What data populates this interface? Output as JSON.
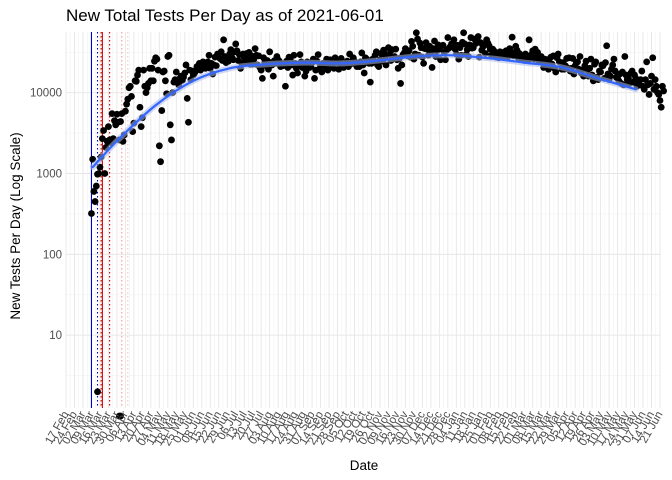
{
  "chart_data": {
    "type": "scatter",
    "title": "New Total Tests Per Day as of 2021-06-01",
    "xlabel": "Date",
    "ylabel": "New Tests Per Day (Log Scale)",
    "y_scale": "log10",
    "x_domain": [
      "2020-02-17",
      "2021-06-21"
    ],
    "y_ticks": [
      10,
      100,
      1000,
      10000
    ],
    "y_tick_labels": [
      "10",
      "100",
      "1000",
      "10000"
    ],
    "grid": true,
    "x_tick_labels": [
      "17 Feb",
      "24 Feb",
      "02 Mar",
      "09 Mar",
      "16 Mar",
      "23 Mar",
      "30 Mar",
      "06 Apr",
      "13 Apr",
      "20 Apr",
      "27 Apr",
      "04 May",
      "11 May",
      "18 May",
      "25 May",
      "01 Jun",
      "08 Jun",
      "15 Jun",
      "22 Jun",
      "29 Jun",
      "06 Jul",
      "13 Jul",
      "20 Jul",
      "27 Jul",
      "03 Aug",
      "10 Aug",
      "17 Aug",
      "24 Aug",
      "31 Aug",
      "07 Sep",
      "14 Sep",
      "21 Sep",
      "28 Sep",
      "05 Oct",
      "12 Oct",
      "19 Oct",
      "26 Oct",
      "02 Nov",
      "09 Nov",
      "16 Nov",
      "23 Nov",
      "30 Nov",
      "07 Dec",
      "14 Dec",
      "21 Dec",
      "28 Dec",
      "04 Jan",
      "11 Jan",
      "18 Jan",
      "25 Jan",
      "01 Feb",
      "08 Feb",
      "15 Feb",
      "22 Feb",
      "01 Mar",
      "08 Mar",
      "15 Mar",
      "22 Mar",
      "29 Mar",
      "05 Apr",
      "12 Apr",
      "19 Apr",
      "26 Apr",
      "03 May",
      "10 May",
      "17 May",
      "24 May",
      "31 May",
      "07 Jun",
      "14 Jun",
      "21 Jun"
    ],
    "vertical_lines": [
      {
        "date": "2020-03-09",
        "color": "#0000cc",
        "style": "solid"
      },
      {
        "date": "2020-03-14",
        "color": "#0000cc",
        "style": "dotted"
      },
      {
        "date": "2020-03-17",
        "color": "#cc0000",
        "style": "dotted"
      },
      {
        "date": "2020-03-18",
        "color": "#cc0000",
        "style": "solid"
      },
      {
        "date": "2020-03-24",
        "color": "#cc0000",
        "style": "dotted"
      },
      {
        "date": "2020-04-03",
        "color": "#ff9999",
        "style": "dotted"
      },
      {
        "date": "2020-04-08",
        "color": "#ffc0c0",
        "style": "dotted"
      }
    ],
    "trend": {
      "color": "#3366ff",
      "x": [
        "2020-03-10",
        "2020-04-01",
        "2020-05-01",
        "2020-06-01",
        "2020-07-01",
        "2020-08-01",
        "2020-09-01",
        "2020-10-01",
        "2020-11-01",
        "2020-12-01",
        "2021-01-01",
        "2021-02-01",
        "2021-03-01",
        "2021-04-01",
        "2021-05-01",
        "2021-06-01"
      ],
      "y": [
        1200,
        2700,
        7000,
        14000,
        20000,
        22500,
        23500,
        23000,
        25000,
        28000,
        29000,
        26500,
        23500,
        20500,
        15000,
        11000
      ]
    },
    "outliers": [
      {
        "x": "2020-03-14",
        "y": 2
      },
      {
        "x": "2020-04-01",
        "y": 1
      },
      {
        "x": "2020-04-02",
        "y": 1
      }
    ],
    "series": [
      {
        "color": "#000000",
        "x_start": "2020-03-09",
        "y": [
          320,
          1500,
          600,
          450,
          700,
          980,
          1000,
          1200,
          1600,
          2700,
          3400,
          1000,
          2100,
          2500,
          3800,
          2600,
          2400,
          5500,
          2700,
          4500,
          4000,
          5400,
          4300,
          2600,
          4400,
          5500,
          2500,
          3000,
          5900,
          7200,
          8300,
          11500,
          12000,
          9000,
          3300,
          4200,
          14000,
          13800,
          16500,
          19000,
          6600,
          3800,
          4900,
          19000,
          12000,
          10000,
          11500,
          13000,
          20000,
          14000,
          20000,
          14000,
          24500,
          27000,
          26000,
          19000,
          2200,
          1400,
          6000,
          18000,
          18500,
          14000,
          9700,
          28000,
          29000,
          4000,
          2600,
          10000,
          13500,
          14500,
          18000,
          13500,
          12500,
          15000,
          16000,
          14200,
          15600,
          17500,
          22000,
          8500,
          4300,
          19000,
          14500,
          18500,
          16500,
          17500,
          18500,
          21000,
          20000,
          23000,
          19000,
          20500,
          24000,
          23500,
          20000,
          22500,
          24000,
          29000,
          20000,
          23000,
          17000,
          22000,
          27500,
          21500,
          30000,
          27500,
          26500,
          32000,
          25000,
          45000,
          28000,
          23500,
          26000,
          24500,
          30000,
          34000,
          27000,
          25500,
          32000,
          40000,
          33000,
          25000,
          29500,
          20000,
          23000,
          30000,
          27000,
          24000,
          30500,
          25500,
          31500,
          22500,
          28500,
          22500,
          26000,
          35000,
          29000,
          22000,
          28500,
          20500,
          19000,
          15000,
          27000,
          23500,
          21500,
          25000,
          19500,
          32000,
          23500,
          22000,
          16000,
          25000,
          23000,
          28000,
          25500,
          24500,
          21000,
          22500,
          21500,
          22000,
          12000,
          24500,
          20500,
          27500,
          25500,
          22000,
          16500,
          29000,
          23000,
          20000,
          17500,
          22500,
          29500,
          24000,
          20500,
          21500,
          16000,
          18500,
          24000,
          23000,
          20500,
          21000,
          23500,
          26000,
          15000,
          19000,
          24500,
          29500,
          19500,
          21500,
          18000,
          23000,
          22000,
          21000,
          26000,
          19000,
          23500,
          25500,
          22000,
          23500,
          20000,
          27000,
          25500,
          23500,
          19500,
          23000,
          26500,
          22500,
          20500,
          22000,
          21500,
          24500,
          21000,
          30000,
          24000,
          23000,
          27000,
          24500,
          22500,
          21000,
          23000,
          21000,
          24000,
          31000,
          22000,
          17500,
          27000,
          26000,
          23500,
          23000,
          13500,
          23000,
          26000,
          24500,
          29000,
          32000,
          22000,
          21000,
          25500,
          30500,
          24500,
          33500,
          27000,
          22000,
          29500,
          36000,
          30000,
          25000,
          34000,
          26500,
          28000,
          34500,
          25500,
          20000,
          26500,
          13000,
          22000,
          29500,
          31000,
          35000,
          33000,
          28500,
          33000,
          27500,
          43000,
          37500,
          26000,
          30000,
          55000,
          46000,
          29000,
          41000,
          36000,
          27500,
          23000,
          35000,
          41500,
          34500,
          29000,
          37500,
          31000,
          20500,
          35000,
          43500,
          28000,
          33000,
          39000,
          34500,
          25500,
          38000,
          38500,
          31500,
          25500,
          33500,
          48000,
          35500,
          37000,
          40000,
          40000,
          45000,
          34500,
          30000,
          38500,
          26000,
          36000,
          29000,
          42000,
          55000,
          40000,
          29500,
          34000,
          28000,
          39000,
          48000,
          35500,
          36000,
          46000,
          40500,
          45500,
          49500,
          27500,
          41500,
          33500,
          37000,
          40000,
          30500,
          45000,
          41000,
          38000,
          34500,
          29000,
          34500,
          33000,
          30500,
          27500,
          31000,
          27000,
          32000,
          28500,
          27500,
          31500,
          29500,
          33000,
          27000,
          29000,
          35000,
          30000,
          48500,
          28500,
          31500,
          37500,
          33500,
          27000,
          30500,
          27000,
          25500,
          28000,
          25000,
          30000,
          27500,
          25000,
          45000,
          26500,
          29500,
          33000,
          26000,
          34500,
          27000,
          31500,
          24500,
          26000,
          28000,
          24000,
          20500,
          26000,
          22500,
          25500,
          19500,
          23500,
          27500,
          22500,
          28500,
          20000,
          18000,
          27000,
          30000,
          24000,
          23500,
          19500,
          23500,
          19500,
          21500,
          26500,
          20000,
          27000,
          18500,
          20000,
          26500,
          17000,
          21500,
          23500,
          24000,
          19500,
          28000,
          17500,
          19000,
          16000,
          21500,
          24500,
          19000,
          16000,
          20000,
          26000,
          16500,
          14000,
          22500,
          24000,
          15500,
          14500,
          18500,
          18000,
          22000,
          21500,
          15000,
          23500,
          38000,
          17000,
          14500,
          16000,
          19500,
          22000,
          26000,
          18500,
          15500,
          15000,
          14000,
          17000,
          13000,
          18000,
          12500,
          28000,
          16500,
          14500,
          15000,
          13000,
          17500,
          18500,
          13500,
          16500,
          15000,
          12000,
          14000,
          12500,
          14500,
          18500,
          12000,
          11000,
          14500,
          24000,
          12500,
          9500,
          13000,
          16000,
          27000,
          11000,
          14500,
          12000,
          10000,
          9500,
          8000,
          6600,
          12000,
          10500
        ]
      }
    ]
  }
}
